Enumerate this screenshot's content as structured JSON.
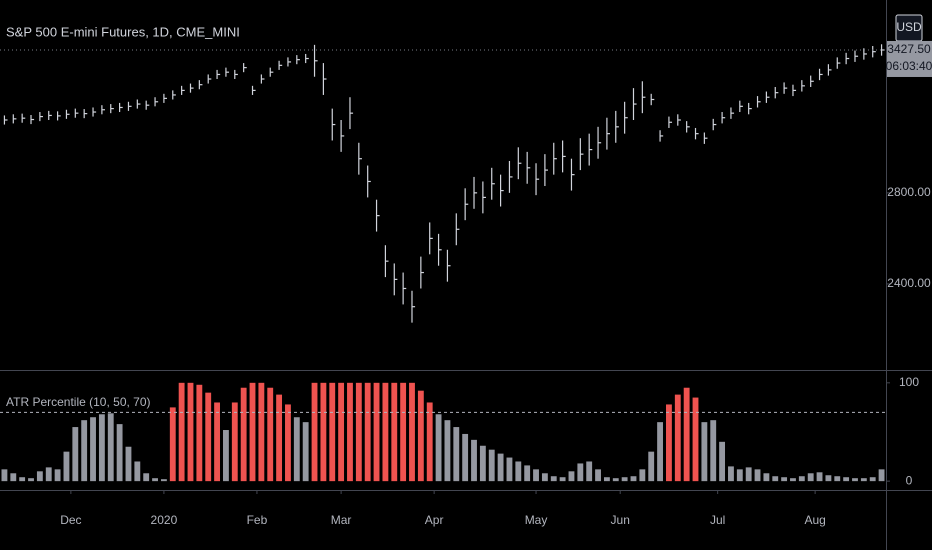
{
  "chart_data": [
    {
      "type": "ohlc",
      "title": "S&P 500 E-mini Futures, 1D, CME_MINI",
      "currency": "USD",
      "countdown": "06:03:40",
      "last_price": {
        "value": 3427.5,
        "label": "3427.50"
      },
      "color": "#d1d4dc",
      "xlim": [
        -0.5,
        99.5
      ],
      "ylim": [
        2022,
        3647
      ],
      "yticks": [
        {
          "value": 2400,
          "label": "2400.00"
        },
        {
          "value": 2800,
          "label": "2800.00"
        }
      ],
      "series": [
        {
          "name": "S&P 500 E-mini Futures",
          "values": [
            3120,
            3125,
            3128,
            3122,
            3135,
            3140,
            3138,
            3145,
            3150,
            3148,
            3155,
            3165,
            3170,
            3175,
            3180,
            3190,
            3185,
            3200,
            3215,
            3230,
            3250,
            3260,
            3275,
            3300,
            3320,
            3330,
            3320,
            3350,
            3250,
            3300,
            3330,
            3360,
            3375,
            3385,
            3390,
            3380,
            3300,
            3100,
            3050,
            3150,
            2950,
            2850,
            2700,
            2500,
            2420,
            2380,
            2300,
            2450,
            2600,
            2550,
            2480,
            2640,
            2750,
            2800,
            2780,
            2840,
            2810,
            2870,
            2930,
            2910,
            2860,
            2900,
            2950,
            2960,
            2880,
            2970,
            2990,
            3020,
            3060,
            3090,
            3130,
            3190,
            3220,
            3210,
            3050,
            3110,
            3120,
            3090,
            3060,
            3040,
            3100,
            3130,
            3150,
            3180,
            3170,
            3200,
            3220,
            3240,
            3260,
            3250,
            3270,
            3290,
            3320,
            3340,
            3370,
            3390,
            3400,
            3410,
            3420,
            3427.5
          ],
          "high": [
            3140,
            3145,
            3148,
            3142,
            3155,
            3160,
            3158,
            3165,
            3170,
            3168,
            3175,
            3185,
            3190,
            3195,
            3200,
            3210,
            3205,
            3220,
            3235,
            3250,
            3270,
            3280,
            3295,
            3320,
            3340,
            3350,
            3340,
            3370,
            3270,
            3320,
            3350,
            3380,
            3395,
            3405,
            3410,
            3450,
            3370,
            3170,
            3120,
            3220,
            3020,
            2920,
            2770,
            2570,
            2490,
            2450,
            2370,
            2520,
            2670,
            2620,
            2550,
            2710,
            2820,
            2870,
            2850,
            2910,
            2880,
            2940,
            3000,
            2980,
            2930,
            2970,
            3020,
            3030,
            2950,
            3040,
            3060,
            3090,
            3130,
            3160,
            3200,
            3260,
            3290,
            3235,
            3075,
            3135,
            3145,
            3115,
            3085,
            3065,
            3125,
            3155,
            3175,
            3205,
            3195,
            3225,
            3245,
            3265,
            3285,
            3275,
            3295,
            3315,
            3345,
            3365,
            3395,
            3415,
            3425,
            3435,
            3445,
            3452.5
          ],
          "low": [
            3100,
            3105,
            3108,
            3102,
            3115,
            3120,
            3118,
            3125,
            3130,
            3128,
            3135,
            3145,
            3150,
            3155,
            3160,
            3170,
            3165,
            3180,
            3195,
            3210,
            3230,
            3240,
            3255,
            3280,
            3300,
            3310,
            3300,
            3330,
            3230,
            3280,
            3310,
            3340,
            3355,
            3365,
            3370,
            3310,
            3230,
            3030,
            2980,
            3080,
            2880,
            2780,
            2630,
            2430,
            2350,
            2310,
            2230,
            2380,
            2530,
            2480,
            2410,
            2570,
            2680,
            2730,
            2710,
            2770,
            2740,
            2800,
            2860,
            2840,
            2790,
            2830,
            2880,
            2890,
            2810,
            2900,
            2920,
            2950,
            2990,
            3020,
            3060,
            3120,
            3150,
            3185,
            3025,
            3085,
            3095,
            3065,
            3035,
            3015,
            3075,
            3105,
            3125,
            3155,
            3145,
            3175,
            3195,
            3215,
            3235,
            3225,
            3245,
            3265,
            3295,
            3315,
            3345,
            3365,
            3375,
            3385,
            3395,
            3402.5
          ]
        }
      ]
    },
    {
      "type": "bar",
      "title": "ATR Percentile (10, 50, 70)",
      "threshold": 70,
      "color_above": "#ef5350",
      "color_below": "#9598a1",
      "xlim": [
        -0.5,
        99.5
      ],
      "ylim": [
        -9,
        111
      ],
      "yticks": [
        0,
        100
      ],
      "xticks": [
        {
          "value": 7.5,
          "label": "Dec"
        },
        {
          "value": 18,
          "label": "2020"
        },
        {
          "value": 28.5,
          "label": "Feb"
        },
        {
          "value": 38,
          "label": "Mar"
        },
        {
          "value": 48.5,
          "label": "Apr"
        },
        {
          "value": 60,
          "label": "May"
        },
        {
          "value": 69.5,
          "label": "Jun"
        },
        {
          "value": 80.5,
          "label": "Jul"
        },
        {
          "value": 91.5,
          "label": "Aug"
        }
      ],
      "values": [
        12,
        8,
        4,
        3,
        10,
        14,
        12,
        30,
        55,
        62,
        65,
        68,
        69,
        58,
        35,
        20,
        8,
        3,
        2,
        75,
        100,
        100,
        98,
        90,
        80,
        52,
        80,
        95,
        100,
        100,
        95,
        88,
        78,
        65,
        60,
        100,
        100,
        100,
        100,
        100,
        100,
        100,
        100,
        100,
        100,
        100,
        100,
        92,
        80,
        68,
        62,
        55,
        48,
        42,
        36,
        32,
        28,
        24,
        20,
        16,
        12,
        8,
        5,
        4,
        10,
        18,
        20,
        12,
        4,
        3,
        4,
        5,
        12,
        30,
        60,
        78,
        88,
        95,
        85,
        60,
        62,
        40,
        15,
        12,
        14,
        12,
        8,
        5,
        4,
        3,
        5,
        8,
        9,
        6,
        5,
        4,
        3,
        3,
        4,
        12
      ]
    }
  ]
}
